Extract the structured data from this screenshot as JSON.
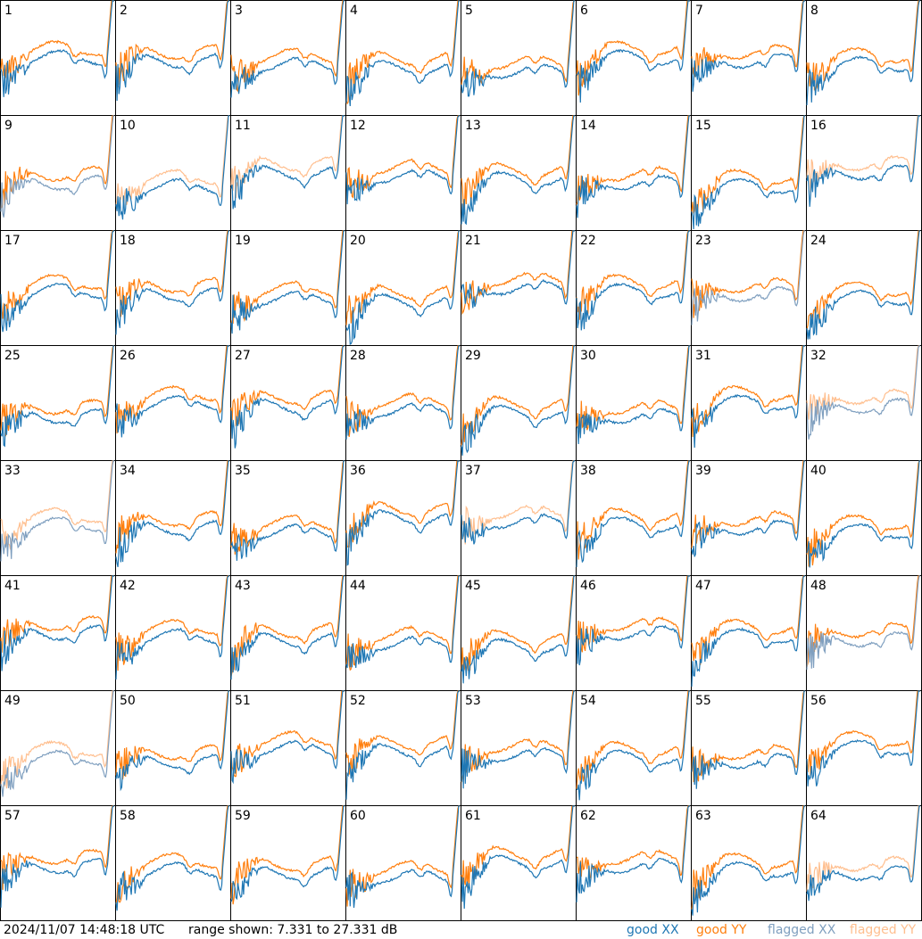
{
  "colors": {
    "good_xx": "#1f77b4",
    "good_yy": "#ff7f0e",
    "flagged_xx": "#7f9fbf",
    "flagged_yy": "#ffbf8f"
  },
  "footer": {
    "timestamp": "2024/11/07 14:48:18 UTC",
    "range_text": "range shown: 7.331 to 27.331 dB"
  },
  "chart_data": {
    "type": "line",
    "layout": "8x8 grid of small-multiple spectra, no axes",
    "value_range_db": [
      7.331,
      27.331
    ],
    "legend": [
      "good XX",
      "good YY",
      "flagged XX",
      "flagged YY"
    ],
    "panels": [
      {
        "id": "1",
        "xx": "good",
        "yy": "good"
      },
      {
        "id": "2",
        "xx": "good",
        "yy": "good"
      },
      {
        "id": "3",
        "xx": "good",
        "yy": "good"
      },
      {
        "id": "4",
        "xx": "good",
        "yy": "good"
      },
      {
        "id": "5",
        "xx": "good",
        "yy": "good"
      },
      {
        "id": "6",
        "xx": "good",
        "yy": "good"
      },
      {
        "id": "7",
        "xx": "good",
        "yy": "good"
      },
      {
        "id": "8",
        "xx": "good",
        "yy": "good"
      },
      {
        "id": "9",
        "xx": "flagged",
        "yy": "good"
      },
      {
        "id": "10",
        "xx": "good",
        "yy": "flagged"
      },
      {
        "id": "11",
        "xx": "good",
        "yy": "flagged"
      },
      {
        "id": "12",
        "xx": "good",
        "yy": "good"
      },
      {
        "id": "13",
        "xx": "good",
        "yy": "good"
      },
      {
        "id": "14",
        "xx": "good",
        "yy": "good"
      },
      {
        "id": "15",
        "xx": "good",
        "yy": "good"
      },
      {
        "id": "16",
        "xx": "good",
        "yy": "flagged"
      },
      {
        "id": "17",
        "xx": "good",
        "yy": "good"
      },
      {
        "id": "18",
        "xx": "good",
        "yy": "good"
      },
      {
        "id": "19",
        "xx": "good",
        "yy": "good"
      },
      {
        "id": "20",
        "xx": "good",
        "yy": "good"
      },
      {
        "id": "21",
        "xx": "good",
        "yy": "good"
      },
      {
        "id": "22",
        "xx": "good",
        "yy": "good"
      },
      {
        "id": "23",
        "xx": "flagged",
        "yy": "good"
      },
      {
        "id": "24",
        "xx": "good",
        "yy": "good"
      },
      {
        "id": "25",
        "xx": "good",
        "yy": "good"
      },
      {
        "id": "26",
        "xx": "good",
        "yy": "good"
      },
      {
        "id": "27",
        "xx": "good",
        "yy": "good"
      },
      {
        "id": "28",
        "xx": "good",
        "yy": "good"
      },
      {
        "id": "29",
        "xx": "good",
        "yy": "good"
      },
      {
        "id": "30",
        "xx": "good",
        "yy": "good"
      },
      {
        "id": "31",
        "xx": "good",
        "yy": "good"
      },
      {
        "id": "32",
        "xx": "flagged",
        "yy": "flagged"
      },
      {
        "id": "33",
        "xx": "flagged",
        "yy": "flagged"
      },
      {
        "id": "34",
        "xx": "good",
        "yy": "good"
      },
      {
        "id": "35",
        "xx": "good",
        "yy": "good"
      },
      {
        "id": "36",
        "xx": "good",
        "yy": "good"
      },
      {
        "id": "37",
        "xx": "good",
        "yy": "flagged"
      },
      {
        "id": "38",
        "xx": "good",
        "yy": "good"
      },
      {
        "id": "39",
        "xx": "good",
        "yy": "good"
      },
      {
        "id": "40",
        "xx": "good",
        "yy": "good"
      },
      {
        "id": "41",
        "xx": "good",
        "yy": "good"
      },
      {
        "id": "42",
        "xx": "good",
        "yy": "good"
      },
      {
        "id": "43",
        "xx": "good",
        "yy": "good"
      },
      {
        "id": "44",
        "xx": "good",
        "yy": "good"
      },
      {
        "id": "45",
        "xx": "good",
        "yy": "good"
      },
      {
        "id": "46",
        "xx": "good",
        "yy": "good"
      },
      {
        "id": "47",
        "xx": "good",
        "yy": "good"
      },
      {
        "id": "48",
        "xx": "flagged",
        "yy": "good"
      },
      {
        "id": "49",
        "xx": "flagged",
        "yy": "flagged"
      },
      {
        "id": "50",
        "xx": "good",
        "yy": "good"
      },
      {
        "id": "51",
        "xx": "good",
        "yy": "good"
      },
      {
        "id": "52",
        "xx": "good",
        "yy": "good"
      },
      {
        "id": "53",
        "xx": "good",
        "yy": "good"
      },
      {
        "id": "54",
        "xx": "good",
        "yy": "good"
      },
      {
        "id": "55",
        "xx": "good",
        "yy": "good"
      },
      {
        "id": "56",
        "xx": "good",
        "yy": "good"
      },
      {
        "id": "57",
        "xx": "good",
        "yy": "good"
      },
      {
        "id": "58",
        "xx": "good",
        "yy": "good"
      },
      {
        "id": "59",
        "xx": "good",
        "yy": "good"
      },
      {
        "id": "60",
        "xx": "good",
        "yy": "good"
      },
      {
        "id": "61",
        "xx": "good",
        "yy": "good"
      },
      {
        "id": "62",
        "xx": "good",
        "yy": "good"
      },
      {
        "id": "63",
        "xx": "good",
        "yy": "good"
      },
      {
        "id": "64",
        "xx": "good",
        "yy": "flagged"
      }
    ]
  }
}
